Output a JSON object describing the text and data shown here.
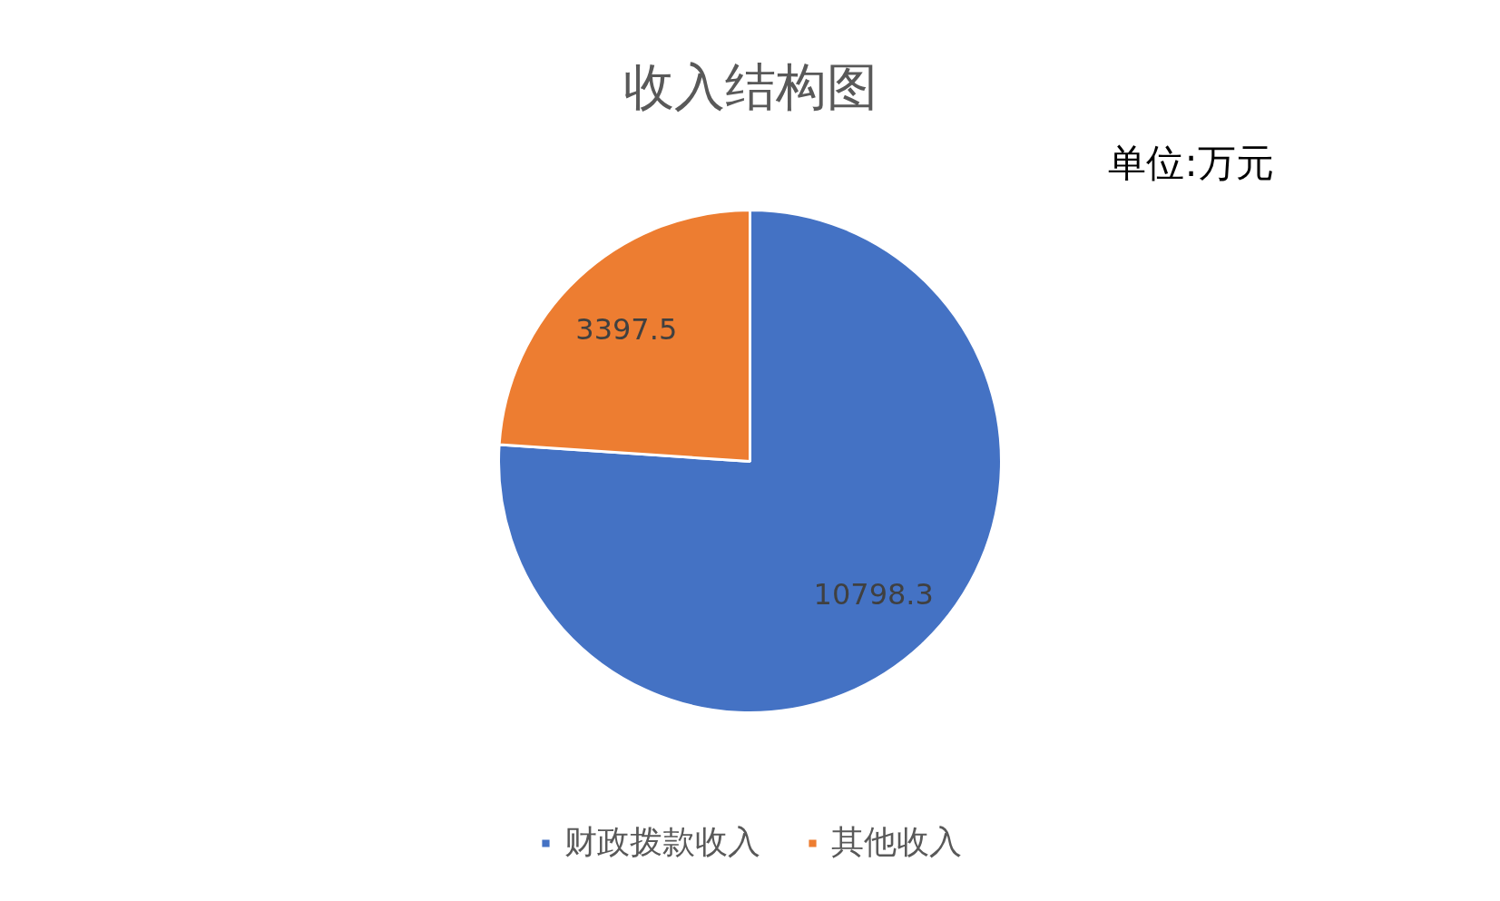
{
  "chart_data": {
    "type": "pie",
    "title": "收入结构图",
    "categories": [
      "财政拨款收入",
      "其他收入"
    ],
    "values": [
      10798.3,
      3397.5
    ],
    "colors": [
      "#4472c4",
      "#ed7d31"
    ],
    "data_labels": true,
    "legend": "bottom",
    "annotations": [
      "单位:万元"
    ]
  }
}
